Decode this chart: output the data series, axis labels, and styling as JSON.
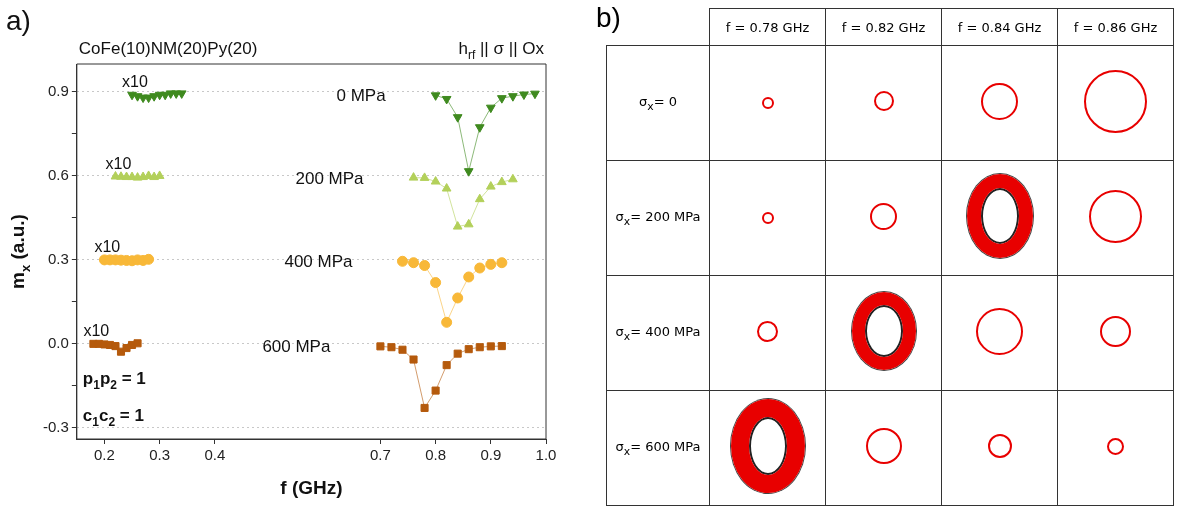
{
  "chart_data": [
    {
      "type": "line",
      "title": "a)",
      "xlabel": "f (GHz)",
      "ylabel": "m$_{x}$ (a.u.)",
      "xlim": [
        0.15,
        1.0
      ],
      "xticks": [
        0.2,
        0.3,
        0.4,
        0.7,
        0.8,
        0.9,
        {
          "value": 1.0,
          "label": "1.0"
        }
      ],
      "ylim": [
        -0.34,
        1.0
      ],
      "yticks": [
        -0.3,
        {
          "value": -0.15,
          "label": null
        },
        {
          "value": 0,
          "label": "0.0"
        },
        {
          "value": 0.15,
          "label": null
        },
        0.3,
        {
          "value": 0.45,
          "label": null
        },
        0.6,
        {
          "value": 0.75,
          "label": null
        },
        0.9
      ],
      "grid": "y",
      "legend": false,
      "series": [
        {
          "type": "scatter",
          "color": "#3f8a1f",
          "marker": "triangle-down",
          "x": [
            0.25,
            0.26,
            0.27,
            0.28,
            0.29,
            0.3,
            0.31,
            0.32,
            0.33,
            0.34
          ],
          "values": [
            0.89,
            0.885,
            0.88,
            0.88,
            0.885,
            0.89,
            0.89,
            0.895,
            0.895,
            0.895
          ]
        },
        {
          "type": "line",
          "name": "0 MPa",
          "color": "#3f8a1f",
          "marker": "triangle-down",
          "x": [
            0.8,
            0.82,
            0.84,
            0.86,
            0.88,
            0.9,
            0.92,
            0.94,
            0.96,
            0.98
          ],
          "values": [
            0.888,
            0.875,
            0.81,
            0.617,
            0.774,
            0.844,
            0.878,
            0.885,
            0.891,
            0.894
          ]
        },
        {
          "type": "scatter",
          "color": "#b3d05a",
          "marker": "triangle",
          "x": [
            0.22,
            0.23,
            0.24,
            0.25,
            0.26,
            0.27,
            0.28,
            0.29,
            0.3
          ],
          "values": [
            0.598,
            0.597,
            0.596,
            0.596,
            0.594,
            0.596,
            0.6,
            0.596,
            0.6
          ]
        },
        {
          "type": "line",
          "name": "200 MPa",
          "color": "#b3d05a",
          "marker": "triangle",
          "x": [
            0.76,
            0.78,
            0.8,
            0.82,
            0.84,
            0.86,
            0.88,
            0.9,
            0.92,
            0.94
          ],
          "values": [
            0.594,
            0.593,
            0.58,
            0.555,
            0.419,
            0.427,
            0.517,
            0.562,
            0.578,
            0.588
          ]
        },
        {
          "type": "scatter",
          "color": "#f8b838",
          "marker": "circle",
          "x": [
            0.2,
            0.21,
            0.22,
            0.23,
            0.24,
            0.25,
            0.26,
            0.27,
            0.28
          ],
          "values": [
            0.3,
            0.3,
            0.3,
            0.299,
            0.298,
            0.297,
            0.3,
            0.298,
            0.302
          ]
        },
        {
          "type": "line",
          "name": "400 MPa",
          "color": "#f8b838",
          "marker": "circle",
          "x": [
            0.74,
            0.76,
            0.78,
            0.8,
            0.82,
            0.84,
            0.86,
            0.88,
            0.9,
            0.92
          ],
          "values": [
            0.295,
            0.29,
            0.28,
            0.219,
            0.077,
            0.164,
            0.239,
            0.271,
            0.284,
            0.29
          ]
        },
        {
          "type": "scatter",
          "color": "#b55a0c",
          "marker": "square",
          "x": [
            0.18,
            0.19,
            0.2,
            0.21,
            0.22,
            0.23,
            0.24,
            0.25,
            0.26
          ],
          "values": [
            0,
            0,
            -0.002,
            -0.004,
            -0.008,
            -0.028,
            -0.015,
            -0.004,
            0.002
          ]
        },
        {
          "type": "line",
          "name": "600 MPa",
          "color": "#b55a0c",
          "marker": "square",
          "x": [
            0.7,
            0.72,
            0.74,
            0.76,
            0.78,
            0.8,
            0.82,
            0.84,
            0.86,
            0.88,
            0.9,
            0.92
          ],
          "values": [
            -0.009,
            -0.012,
            -0.021,
            -0.056,
            -0.229,
            -0.167,
            -0.076,
            -0.035,
            -0.019,
            -0.012,
            -0.009,
            -0.008
          ]
        }
      ],
      "annotations": [
        "CoFe(10)NM(20)Py(20)",
        "h$_{rf}$ || σ || Ox",
        "p$_{1}$p$_{2}$ = 1",
        "c$_{1}$c$_{2}$ = 1",
        {
          "text": "x10",
          "x": 0.25,
          "y": 0.89
        },
        {
          "text": "x10",
          "x": 0.22,
          "y": 0.598
        },
        {
          "text": "x10",
          "x": 0.2,
          "y": 0.3
        },
        {
          "text": "x10",
          "x": 0.18,
          "y": 0
        }
      ]
    },
    {
      "type": "other",
      "title": "b)",
      "categories": [
        "f = 0.78 GHz",
        "f = 0.82 GHz",
        "f = 0.84 GHz",
        "f = 0.86 GHz"
      ],
      "y_categories": [
        "σ$_{x}$= 0",
        "σ$_{x}$= 200 MPa",
        "σ$_{x}$= 400 MPa",
        "σ$_{x}$= 600 MPa"
      ]
    }
  ]
}
